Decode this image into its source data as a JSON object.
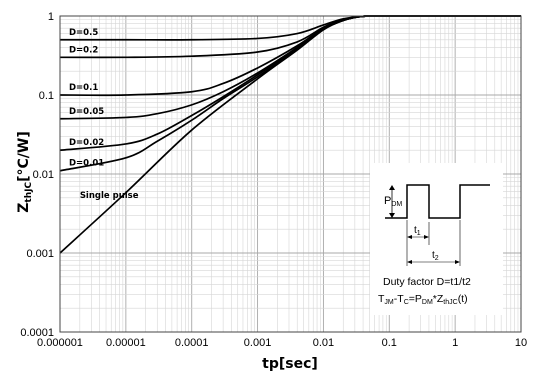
{
  "chart_data": {
    "type": "line",
    "xscale": "log",
    "yscale": "log",
    "xlim": [
      1e-06,
      10
    ],
    "ylim": [
      0.0001,
      1
    ],
    "x_ticks": [
      "0.000001",
      "0.00001",
      "0.0001",
      "0.001",
      "0.01",
      "0.1",
      "1",
      "10"
    ],
    "y_ticks": [
      "1",
      "0.1",
      "0.01",
      "0.001",
      "0.0001"
    ],
    "xlabel": "tp[sec]",
    "ylabel_main": "Z",
    "ylabel_sub": "thJC",
    "ylabel_unit": "[°C/W]",
    "grid": true,
    "series": [
      {
        "name": "D=0.5",
        "x": [
          1e-06,
          1e-05,
          0.0001,
          0.001,
          0.004,
          0.01,
          0.02,
          0.04,
          0.1,
          10
        ],
        "y": [
          0.5,
          0.5,
          0.5,
          0.52,
          0.6,
          0.77,
          0.92,
          0.99,
          1,
          1
        ]
      },
      {
        "name": "D=0.2",
        "x": [
          1e-06,
          1e-05,
          0.0001,
          0.001,
          0.004,
          0.01,
          0.02,
          0.04,
          0.1,
          10
        ],
        "y": [
          0.3,
          0.3,
          0.31,
          0.35,
          0.47,
          0.72,
          0.9,
          0.99,
          1,
          1
        ]
      },
      {
        "name": "D=0.1",
        "x": [
          1e-06,
          1e-05,
          0.0001,
          0.0003,
          0.001,
          0.004,
          0.01,
          0.02,
          0.04,
          0.1,
          10
        ],
        "y": [
          0.1,
          0.1,
          0.11,
          0.14,
          0.22,
          0.42,
          0.7,
          0.89,
          0.99,
          1,
          1
        ]
      },
      {
        "name": "D=0.05",
        "x": [
          1e-06,
          1e-05,
          3e-05,
          0.0001,
          0.0003,
          0.001,
          0.004,
          0.01,
          0.02,
          0.04,
          0.1,
          10
        ],
        "y": [
          0.05,
          0.052,
          0.058,
          0.075,
          0.11,
          0.19,
          0.4,
          0.69,
          0.88,
          0.99,
          1,
          1
        ]
      },
      {
        "name": "D=0.02",
        "x": [
          1e-06,
          1e-05,
          3e-05,
          0.0001,
          0.0003,
          0.001,
          0.004,
          0.01,
          0.02,
          0.04,
          0.1,
          10
        ],
        "y": [
          0.02,
          0.024,
          0.032,
          0.055,
          0.095,
          0.18,
          0.39,
          0.68,
          0.88,
          0.99,
          1,
          1
        ]
      },
      {
        "name": "D=0.01",
        "x": [
          1e-06,
          1e-05,
          3e-05,
          0.0001,
          0.0003,
          0.001,
          0.004,
          0.01,
          0.02,
          0.04,
          0.1,
          10
        ],
        "y": [
          0.011,
          0.016,
          0.026,
          0.048,
          0.09,
          0.17,
          0.38,
          0.68,
          0.88,
          0.99,
          1,
          1
        ]
      },
      {
        "name": "Single pulse",
        "x": [
          1e-06,
          1e-05,
          0.0001,
          0.001,
          0.004,
          0.01,
          0.02,
          0.04,
          0.1,
          10
        ],
        "y": [
          0.001,
          0.0058,
          0.036,
          0.16,
          0.37,
          0.67,
          0.88,
          0.99,
          1,
          1
        ]
      }
    ]
  },
  "inset": {
    "pdm_main": "P",
    "pdm_sub": "DM",
    "t1_main": "t",
    "t1_sub": "1",
    "t2_main": "t",
    "t2_sub": "2",
    "duty_text": "Duty factor D=t1/t2",
    "formula": {
      "t_main": "T",
      "t_sub": "JM",
      "dash": "-T",
      "c_sub": "C",
      "eq": "=P",
      "dm_sub": "DM",
      "star": "*Z",
      "thjc_sub": "thJC",
      "tail": "(t)"
    }
  }
}
